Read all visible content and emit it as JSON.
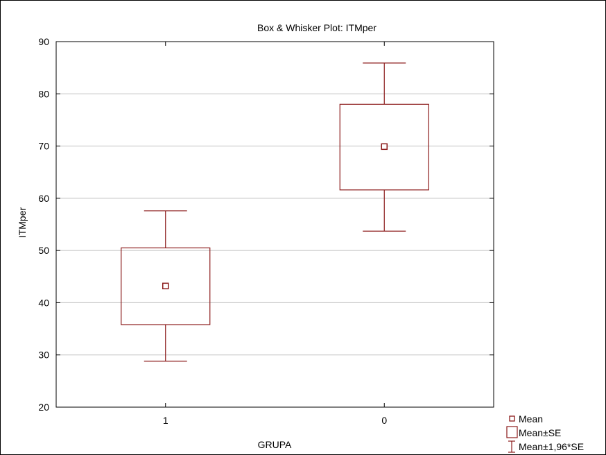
{
  "chart_data": {
    "type": "boxplot",
    "title": "Box & Whisker Plot:   ITMper",
    "xlabel": "GRUPA",
    "ylabel": "ITMper",
    "ylim": [
      20,
      90
    ],
    "yticks": [
      20,
      30,
      40,
      50,
      60,
      70,
      80,
      90
    ],
    "grid": true,
    "legend_position": "bottom-right",
    "categories": [
      "1",
      "0"
    ],
    "groups": [
      {
        "category": "1",
        "mean": 43.2,
        "se_low": 35.8,
        "se_high": 50.5,
        "ci_low": 28.8,
        "ci_high": 57.6
      },
      {
        "category": "0",
        "mean": 69.9,
        "se_low": 61.6,
        "se_high": 78.0,
        "ci_low": 53.7,
        "ci_high": 85.9
      }
    ],
    "legend": [
      {
        "key": "mean",
        "label": "Mean"
      },
      {
        "key": "se",
        "label": "Mean±SE"
      },
      {
        "key": "ci",
        "label": "Mean±1,96*SE"
      }
    ],
    "colors": {
      "series": "#8b1a1a",
      "grid": "#c0c0c0",
      "axis": "#000000"
    }
  }
}
